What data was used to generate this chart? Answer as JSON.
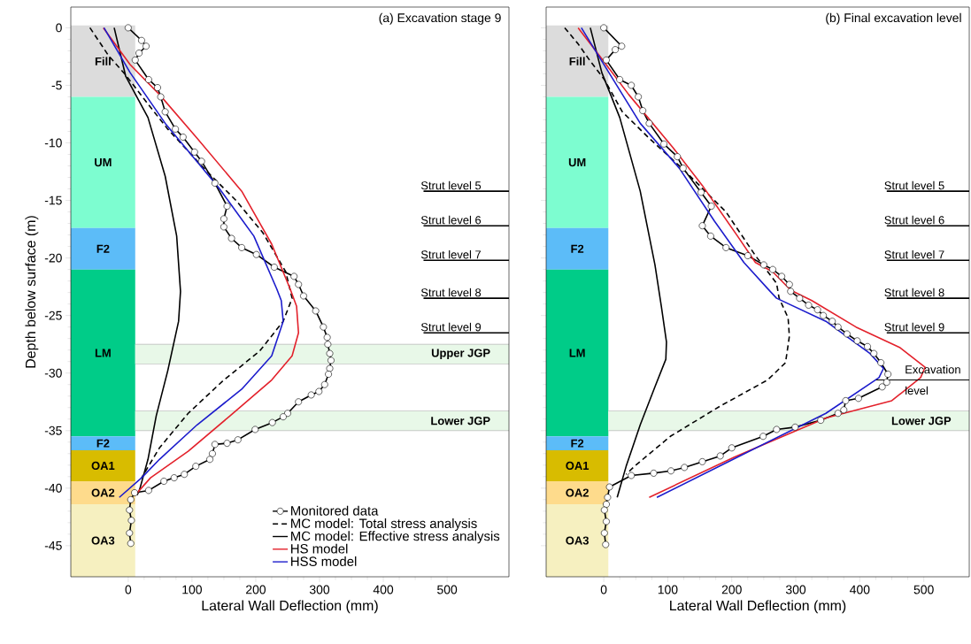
{
  "chart_data": [
    {
      "type": "line",
      "title": "(a) Excavation stage 9",
      "xlabel": "Lateral Wall Deflection (mm)",
      "ylabel": "Depth below surface (m)",
      "xlim": [
        -90,
        597
      ],
      "ylim": [
        -47.7,
        1.8
      ],
      "xticks": [
        0,
        100,
        200,
        300,
        400,
        500
      ],
      "yticks": [
        0,
        -5,
        -10,
        -15,
        -20,
        -25,
        -30,
        -35,
        -40,
        -45
      ],
      "legend": "bottom right",
      "series": [
        {
          "name": "Monitored data",
          "color": "#000000",
          "marker": "circle",
          "line_style": "solid",
          "x": [
            0,
            21,
            28,
            17,
            11,
            32,
            46,
            51,
            58,
            74,
            86,
            104,
            115,
            136,
            155,
            150,
            150,
            162,
            178,
            201,
            229,
            260,
            267,
            275,
            294,
            306,
            312,
            313,
            316,
            318,
            316,
            314,
            308,
            299,
            287,
            267,
            250,
            243,
            226,
            199,
            172,
            155,
            136,
            132,
            128,
            106,
            88,
            72,
            56,
            32,
            10,
            4,
            2,
            5,
            2,
            4
          ],
          "values": [
            0,
            -1.1,
            -1.6,
            -2.2,
            -2.8,
            -4.5,
            -5.2,
            -6,
            -7.3,
            -8.8,
            -9.5,
            -10.8,
            -11.6,
            -13.5,
            -15.5,
            -16.6,
            -17.3,
            -18.3,
            -19.1,
            -19.7,
            -20.8,
            -21.6,
            -22.3,
            -23.3,
            -24.6,
            -26,
            -26.9,
            -27.5,
            -28.3,
            -28.9,
            -29.6,
            -30.1,
            -31,
            -31.6,
            -31.9,
            -32.5,
            -33.5,
            -33.8,
            -34.3,
            -34.9,
            -35.8,
            -36.1,
            -36.2,
            -37,
            -37.5,
            -38.1,
            -38.8,
            -39.1,
            -39.4,
            -40.2,
            -40.4,
            -41,
            -41.9,
            -42.8,
            -43.9,
            -44.8
          ]
        },
        {
          "name": "MC model: Total stress analysis",
          "color": "#000000",
          "marker": "none",
          "line_style": "dashed",
          "x": [
            -60,
            -31,
            -4,
            25,
            62,
            122,
            169,
            211,
            247,
            257,
            243,
            206,
            150,
            94,
            49,
            21
          ],
          "values": [
            0,
            -2.4,
            -4.1,
            -6.2,
            -8.8,
            -12.4,
            -15,
            -17.8,
            -21.2,
            -23.5,
            -25.5,
            -28.1,
            -30.6,
            -33.5,
            -36.5,
            -39.1
          ]
        },
        {
          "name": "MC model: Effective stress analysis",
          "color": "#000000",
          "marker": "none",
          "line_style": "solid",
          "x": [
            -22,
            -4,
            31,
            58,
            76,
            82,
            79,
            62,
            44,
            31,
            18,
            14
          ],
          "values": [
            0,
            -4.2,
            -7.8,
            -12.9,
            -18.1,
            -22.9,
            -25.5,
            -29.8,
            -33.7,
            -37.5,
            -40.1,
            -40.6
          ]
        },
        {
          "name": "HS model",
          "color": "#e3212b",
          "marker": "none",
          "line_style": "solid",
          "x": [
            -39,
            3,
            49,
            108,
            178,
            225,
            254,
            264,
            267,
            257,
            225,
            160,
            94,
            35,
            11
          ],
          "values": [
            0,
            -3.2,
            -5.8,
            -9.6,
            -14.2,
            -18.8,
            -22.7,
            -24.2,
            -26.5,
            -28.5,
            -30.6,
            -33.7,
            -36.8,
            -39.1,
            -40.6
          ]
        },
        {
          "name": "HSS model",
          "color": "#1c1ccc",
          "marker": "none",
          "line_style": "solid",
          "x": [
            -38,
            3,
            58,
            142,
            197,
            233,
            240,
            243,
            225,
            178,
            108,
            49,
            21,
            -14
          ],
          "values": [
            0,
            -3.9,
            -8.3,
            -13.9,
            -18.1,
            -22.7,
            -23.7,
            -25.5,
            -28.5,
            -31.4,
            -34.5,
            -37.5,
            -39.1,
            -40.8
          ]
        }
      ],
      "bands": [
        {
          "axis": "y",
          "from": 0.2,
          "to": -6,
          "label": "Fill",
          "color": "#dcdcdc"
        },
        {
          "axis": "y",
          "from": -6,
          "to": -17.4,
          "label": "UM",
          "color": "#7dfdd0"
        },
        {
          "axis": "y",
          "from": -17.4,
          "to": -21,
          "label": "F2",
          "color": "#5cbcf8"
        },
        {
          "axis": "y",
          "from": -21,
          "to": -35.5,
          "label": "LM",
          "color": "#00cc88"
        },
        {
          "axis": "y",
          "from": -35.5,
          "to": -36.7,
          "label": "F2",
          "color": "#5cbcf8"
        },
        {
          "axis": "y",
          "from": -36.7,
          "to": -39.4,
          "label": "OA1",
          "color": "#d8bc00"
        },
        {
          "axis": "y",
          "from": -39.4,
          "to": -41.4,
          "label": "OA2",
          "color": "#fedb8c"
        },
        {
          "axis": "y",
          "from": -41.4,
          "to": -47.7,
          "label": "OA3",
          "color": "#f6f0c0"
        },
        {
          "axis": "y",
          "from": -27.5,
          "to": -29.2,
          "label": "Upper JGP",
          "color": "#e8f8e8"
        },
        {
          "axis": "y",
          "from": -33.3,
          "to": -35,
          "label": "Lower JGP",
          "color": "#e8f8e8"
        }
      ],
      "ref_lines": [
        {
          "axis": "y",
          "value": -14.2,
          "label": "Strut level 5"
        },
        {
          "axis": "y",
          "value": -17.2,
          "label": "Strut level 6"
        },
        {
          "axis": "y",
          "value": -20.2,
          "label": "Strut level 7"
        },
        {
          "axis": "y",
          "value": -23.5,
          "label": "Strut level 8"
        },
        {
          "axis": "y",
          "value": -26.5,
          "label": "Strut level 9"
        }
      ]
    },
    {
      "type": "line",
      "title": "(b) Final excavation level",
      "xlabel": "Lateral Wall Deflection (mm)",
      "tick_labels": "x",
      "xlim": [
        -90,
        571
      ],
      "ylim": [
        -47.7,
        1.8
      ],
      "xticks": [
        0,
        100,
        200,
        300,
        400,
        500
      ],
      "yticks": [
        0,
        -5,
        -10,
        -15,
        -20,
        -25,
        -30,
        -35,
        -40,
        -45
      ],
      "series": [
        {
          "color": "#000000",
          "marker": "circle",
          "line_style": "solid",
          "x": [
            0,
            28,
            18,
            4,
            25,
            43,
            54,
            61,
            71,
            94,
            115,
            124,
            152,
            168,
            154,
            167,
            191,
            225,
            250,
            264,
            278,
            290,
            292,
            306,
            320,
            334,
            343,
            357,
            366,
            380,
            396,
            412,
            422,
            433,
            444,
            442,
            435,
            398,
            378,
            375,
            366,
            339,
            299,
            270,
            249,
            200,
            182,
            154,
            126,
            105,
            78,
            43,
            9,
            6,
            4,
            1,
            4,
            1,
            3
          ],
          "values": [
            0,
            -1.6,
            -1.9,
            -2.8,
            -4.5,
            -5,
            -6,
            -7.2,
            -8.3,
            -10.1,
            -11.2,
            -12.2,
            -14.3,
            -15.5,
            -17.2,
            -18.1,
            -19.1,
            -19.8,
            -20.6,
            -21,
            -21.6,
            -22.3,
            -22.9,
            -23.5,
            -24.1,
            -24.5,
            -25,
            -25.5,
            -26,
            -26.6,
            -27.2,
            -27.7,
            -28.3,
            -29.1,
            -30.1,
            -30.8,
            -31.2,
            -32.2,
            -32.4,
            -33.2,
            -33.5,
            -34.1,
            -34.7,
            -34.9,
            -35.5,
            -36.5,
            -37.2,
            -37.7,
            -38.2,
            -38.5,
            -38.7,
            -38.9,
            -39.9,
            -40.8,
            -41.4,
            -41.9,
            -42.9,
            -43.9,
            -44.9
          ]
        },
        {
          "color": "#000000",
          "marker": "none",
          "line_style": "dashed",
          "x": [
            -61,
            -40,
            -21,
            1,
            29,
            71,
            126,
            191,
            237,
            270,
            274,
            288,
            290,
            284,
            256,
            181,
            104,
            48,
            35
          ],
          "values": [
            0,
            -1.4,
            -2.9,
            -4.5,
            -7.3,
            -9.6,
            -12.4,
            -16,
            -19.8,
            -22.2,
            -23.5,
            -25.2,
            -26.8,
            -29.1,
            -30.6,
            -32.9,
            -35.5,
            -38.1,
            -38.8
          ]
        },
        {
          "color": "#000000",
          "marker": "none",
          "line_style": "solid",
          "x": [
            -21,
            -3,
            25,
            57,
            80,
            90,
            98,
            97,
            80,
            57,
            35,
            21
          ],
          "values": [
            0,
            -3.9,
            -7.8,
            -14.2,
            -20.6,
            -24.2,
            -27.3,
            -28.8,
            -31.2,
            -34.5,
            -38.1,
            -40.8
          ]
        },
        {
          "color": "#e3212b",
          "marker": "none",
          "line_style": "solid",
          "x": [
            -40,
            -3,
            39,
            108,
            154,
            209,
            237,
            264,
            292,
            325,
            394,
            463,
            502,
            495,
            450,
            347,
            204,
            71
          ],
          "values": [
            0,
            -2.7,
            -5.8,
            -10.4,
            -13.7,
            -18.1,
            -20.4,
            -21.2,
            -22.8,
            -23.7,
            -26,
            -27.8,
            -29.5,
            -30.4,
            -32.4,
            -33.9,
            -37.3,
            -40.8
          ]
        },
        {
          "color": "#1c1ccc",
          "marker": "none",
          "line_style": "solid",
          "x": [
            -35,
            -3,
            57,
            118,
            173,
            219,
            260,
            270,
            347,
            416,
            437,
            430,
            347,
            209,
            83
          ],
          "values": [
            0,
            -2.9,
            -8.3,
            -12.2,
            -16.8,
            -20.4,
            -22.9,
            -23.5,
            -25.5,
            -28.3,
            -29.6,
            -30.4,
            -33.5,
            -37.3,
            -40.8
          ]
        }
      ],
      "bands": [
        {
          "axis": "y",
          "from": 0.2,
          "to": -6,
          "label": "Fill",
          "color": "#dcdcdc"
        },
        {
          "axis": "y",
          "from": -6,
          "to": -17.4,
          "label": "UM",
          "color": "#7dfdd0"
        },
        {
          "axis": "y",
          "from": -17.4,
          "to": -21,
          "label": "F2",
          "color": "#5cbcf8"
        },
        {
          "axis": "y",
          "from": -21,
          "to": -35.5,
          "label": "LM",
          "color": "#00cc88"
        },
        {
          "axis": "y",
          "from": -35.5,
          "to": -36.7,
          "label": "F2",
          "color": "#5cbcf8"
        },
        {
          "axis": "y",
          "from": -36.7,
          "to": -39.4,
          "label": "OA1",
          "color": "#d8bc00"
        },
        {
          "axis": "y",
          "from": -39.4,
          "to": -41.4,
          "label": "OA2",
          "color": "#fedb8c"
        },
        {
          "axis": "y",
          "from": -41.4,
          "to": -47.7,
          "label": "OA3",
          "color": "#f6f0c0"
        },
        {
          "axis": "y",
          "from": -33.3,
          "to": -35,
          "label": "Lower JGP",
          "color": "#e8f8e8"
        }
      ],
      "ref_lines": [
        {
          "axis": "y",
          "value": -14.2,
          "label": "Strut level 5"
        },
        {
          "axis": "y",
          "value": -17.2,
          "label": "Strut level 6"
        },
        {
          "axis": "y",
          "value": -20.2,
          "label": "Strut level 7"
        },
        {
          "axis": "y",
          "value": -23.5,
          "label": "Strut level 8"
        },
        {
          "axis": "y",
          "value": -26.5,
          "label": "Strut level 9"
        },
        {
          "axis": "y",
          "value": -30.6,
          "label": "Excavation level"
        }
      ]
    }
  ]
}
